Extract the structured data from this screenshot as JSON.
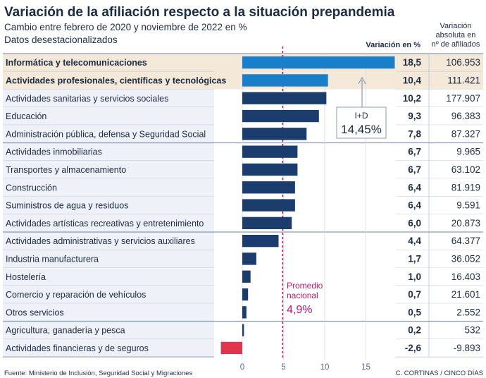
{
  "header": {
    "title": "Variación de la afiliación respecto a la situación prepandemia",
    "subtitle_line1": "Cambio entre febrero de 2020 y noviembre de 2022 en %",
    "subtitle_line2": "Datos desestacionalizados"
  },
  "columns": {
    "pct_header": "Variación en %",
    "abs_header_line1": "Variación",
    "abs_header_line2": "absoluta en",
    "abs_header_line3": "nº de afiliados"
  },
  "annotations": {
    "id_label": "I+D",
    "id_value": "14,45%",
    "avg_label_line1": "Promedio",
    "avg_label_line2": "nacional",
    "avg_value": "4,9%"
  },
  "footer": {
    "source": "Fuente: Ministerio de Inclusión, Seguridad Social y Migraciones",
    "credit": "C. CORTINAS / CINCO DÍAS"
  },
  "colors": {
    "title": "#1c2c44",
    "bar_dark": "#1b3d6d",
    "bar_highlight": "#1a7ec8",
    "bar_negative": "#e1344f",
    "average_line": "#c0156b",
    "row_alt": "#eef1f8",
    "row_highlight": "#f4e8d8",
    "border": "#8b9bb4"
  },
  "chart_data": {
    "type": "bar",
    "orientation": "horizontal",
    "categories": [
      "Informática y telecomunicaciones",
      "Actividades profesionales, científicas y tecnológicas",
      "Actividades sanitarias y servicios sociales",
      "Educación",
      "Administración pública, defensa y Seguridad Social",
      "Actividades inmobiliarias",
      "Transportes y almacenamiento",
      "Construcción",
      "Suministros de agua y residuos",
      "Actividades artísticas recreativas y entretenimiento",
      "Actividades administrativas y  servicios auxiliares",
      "Industria manufacturera",
      "Hostelería",
      "Comercio y reparación de vehículos",
      "Otros servicios",
      "Agricultura, ganadería y pesca",
      "Actividades financieras y de seguros"
    ],
    "values": [
      18.5,
      10.4,
      10.2,
      9.3,
      7.8,
      6.7,
      6.7,
      6.4,
      6.4,
      6.0,
      4.4,
      1.7,
      1.0,
      0.7,
      0.5,
      0.2,
      -2.6
    ],
    "value_labels": [
      "18,5",
      "10,4",
      "10,2",
      "9,3",
      "7,8",
      "6,7",
      "6,7",
      "6,4",
      "6,4",
      "6,0",
      "4,4",
      "1,7",
      "1,0",
      "0,7",
      "0,5",
      "0,2",
      "-2,6"
    ],
    "absolute_labels": [
      "106.953",
      "111.421",
      "177.907",
      "96.383",
      "87.327",
      "9.965",
      "63.102",
      "81.919",
      "9.591",
      "20.873",
      "64.377",
      "36.052",
      "16.403",
      "21.601",
      "2.552",
      "532",
      "-9.893"
    ],
    "highlighted": [
      true,
      true,
      false,
      false,
      false,
      false,
      false,
      false,
      false,
      false,
      false,
      false,
      false,
      false,
      false,
      false,
      false
    ],
    "average": 4.9,
    "xlim": [
      -3,
      18.5
    ],
    "xticks": [
      0,
      5,
      10,
      15
    ],
    "xtick_labels": [
      "0",
      "5",
      "10",
      "15"
    ],
    "group_breaks_after": [
      4,
      9,
      14
    ],
    "title": "Variación de la afiliación respecto a la situación prepandemia",
    "xlabel": "Variación en %",
    "ylabel": ""
  }
}
